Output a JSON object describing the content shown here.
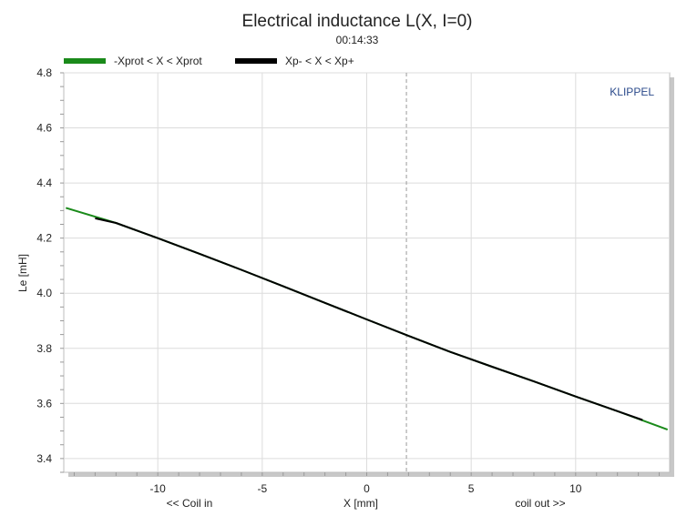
{
  "chart_data": {
    "type": "line",
    "title": "Electrical inductance L(X, I=0)",
    "subtitle": "00:14:33",
    "xlabel": "X [mm]",
    "xlabel_left": "<< Coil in",
    "xlabel_right": "coil out >>",
    "ylabel": "Le [mH]",
    "brand": "KLIPPEL",
    "brand_color": "#2b4a8b",
    "xlim": [
      -14.5,
      14.5
    ],
    "ylim": [
      3.35,
      4.8
    ],
    "x_ticks": [
      -10,
      -5,
      0,
      5,
      10
    ],
    "y_ticks": [
      3.4,
      3.6,
      3.8,
      4.0,
      4.2,
      4.4,
      4.6,
      4.8
    ],
    "x_tick_labels": [
      "-10",
      "-5",
      "0",
      "5",
      "10"
    ],
    "y_tick_labels": [
      "3.4",
      "3.6",
      "3.8",
      "4.0",
      "4.2",
      "4.4",
      "4.6",
      "4.8"
    ],
    "vertical_marker_x": 1.9,
    "grid": true,
    "legend_position": "top-left",
    "series": [
      {
        "name": "-Xprot < X < Xprot",
        "color": "#1a8a1a",
        "x": [
          -14.4,
          -12,
          -10,
          -8,
          -6,
          -4,
          -2,
          0,
          2,
          4,
          6,
          8,
          10,
          12,
          14.4
        ],
        "y": [
          4.31,
          4.255,
          4.2,
          4.143,
          4.085,
          4.025,
          3.965,
          3.905,
          3.845,
          3.787,
          3.733,
          3.68,
          3.625,
          3.572,
          3.505
        ]
      },
      {
        "name": "Xp- < X < Xp+",
        "color": "#000000",
        "x": [
          -13,
          -12,
          -10,
          -8,
          -6,
          -4,
          -2,
          0,
          2,
          4,
          6,
          8,
          10,
          12,
          13.2
        ],
        "y": [
          4.272,
          4.255,
          4.2,
          4.143,
          4.085,
          4.025,
          3.965,
          3.905,
          3.845,
          3.787,
          3.733,
          3.68,
          3.625,
          3.572,
          3.54
        ]
      }
    ]
  }
}
